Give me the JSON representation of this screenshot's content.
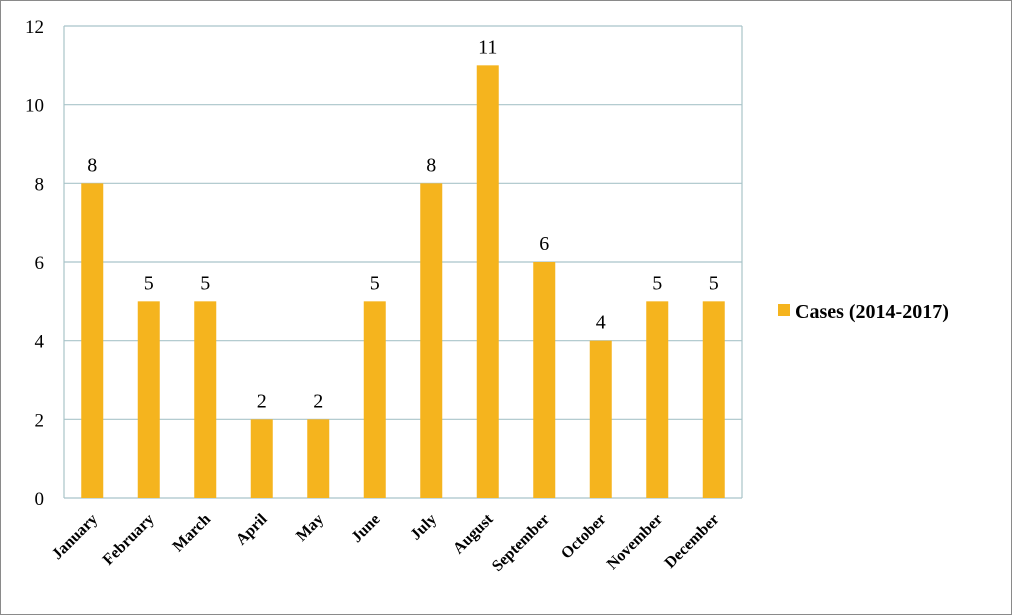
{
  "chart_data": {
    "type": "bar",
    "categories": [
      "January",
      "February",
      "March",
      "April",
      "May",
      "June",
      "July",
      "August",
      "September",
      "October",
      "November",
      "December"
    ],
    "series": [
      {
        "name": "Cases (2014-2017)",
        "values": [
          8,
          5,
          5,
          2,
          2,
          5,
          8,
          11,
          6,
          4,
          5,
          5
        ]
      }
    ],
    "ylim": [
      0,
      12
    ],
    "yticks": [
      "0",
      "2",
      "4",
      "6",
      "8",
      "10",
      "12"
    ],
    "grid": true,
    "legend_position": "right",
    "data_labels": true,
    "bar_color": "#F5B41E",
    "grid_color": "#A9C4C9"
  }
}
